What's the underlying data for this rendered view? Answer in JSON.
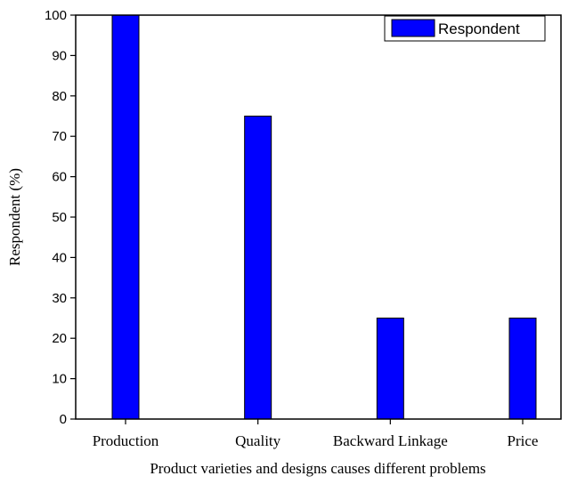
{
  "chart_data": {
    "type": "bar",
    "categories": [
      "Production",
      "Quality",
      "Backward Linkage",
      "Price"
    ],
    "series": [
      {
        "name": "Respondent",
        "values": [
          100,
          75,
          25,
          25
        ],
        "color": "#0000ff"
      }
    ],
    "xlabel": "Product varieties and designs causes different problems",
    "ylabel": "Respondent (%)",
    "ylim": [
      0,
      100
    ],
    "yticks": [
      0,
      10,
      20,
      30,
      40,
      50,
      60,
      70,
      80,
      90,
      100
    ],
    "legend_position": "top-right",
    "grid": false
  }
}
